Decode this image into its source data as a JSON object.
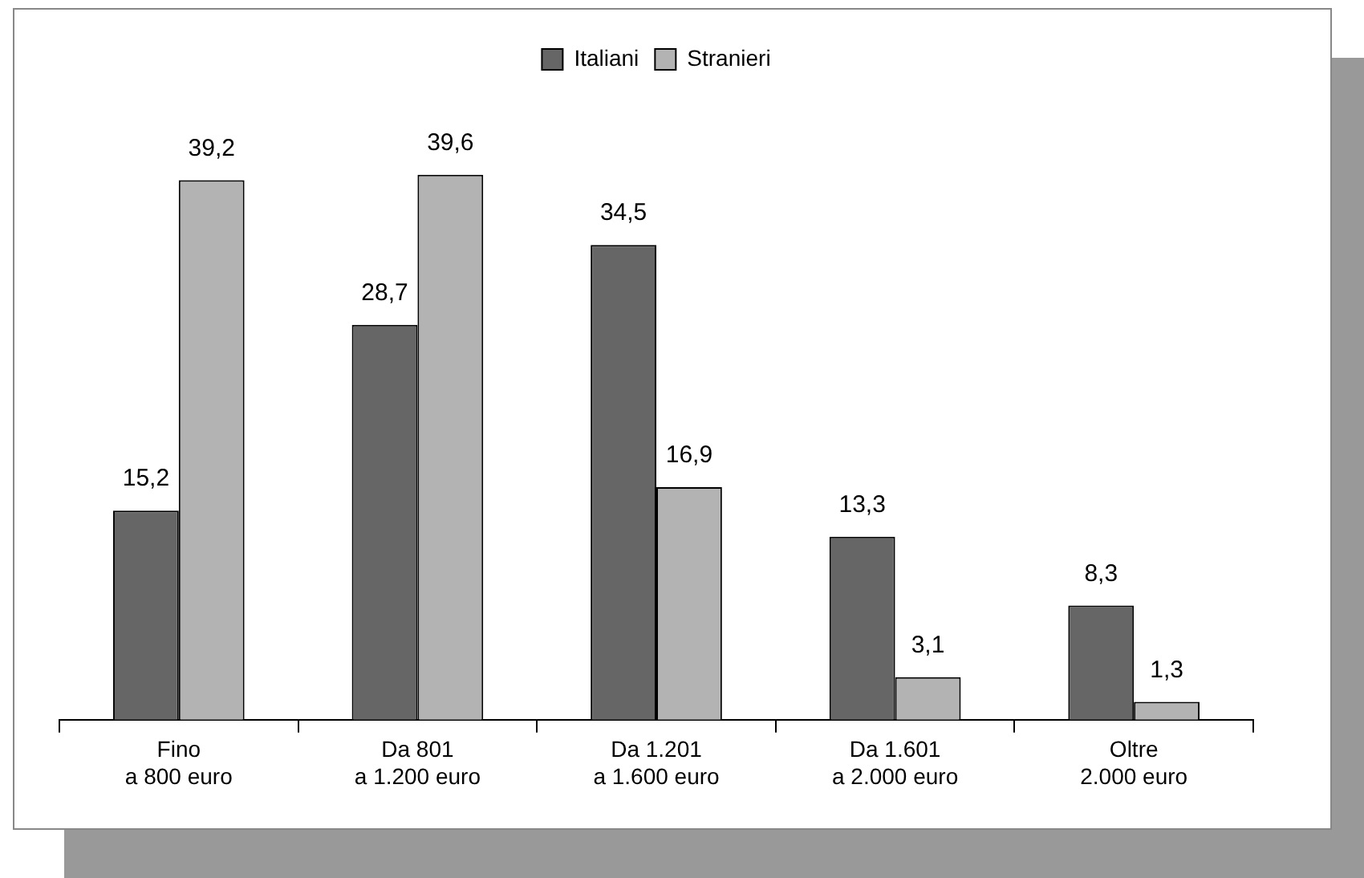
{
  "chart_data": {
    "type": "bar",
    "categories": [
      "Fino\na 800 euro",
      "Da 801\na 1.200 euro",
      "Da 1.201\na 1.600 euro",
      "Da 1.601\na 2.000 euro",
      "Oltre\n2.000 euro"
    ],
    "series": [
      {
        "name": "Italiani",
        "color": "#666666",
        "values": [
          15.2,
          28.7,
          34.5,
          13.3,
          8.3
        ],
        "value_labels": [
          "15,2",
          "28,7",
          "34,5",
          "13,3",
          "8,3"
        ]
      },
      {
        "name": "Stranieri",
        "color": "#b3b3b3",
        "values": [
          39.2,
          39.6,
          16.9,
          3.1,
          1.3
        ],
        "value_labels": [
          "39,2",
          "39,6",
          "16,9",
          "3,1",
          "1,3"
        ]
      }
    ],
    "legend": "top",
    "grid": false,
    "tick_labels": "x"
  }
}
